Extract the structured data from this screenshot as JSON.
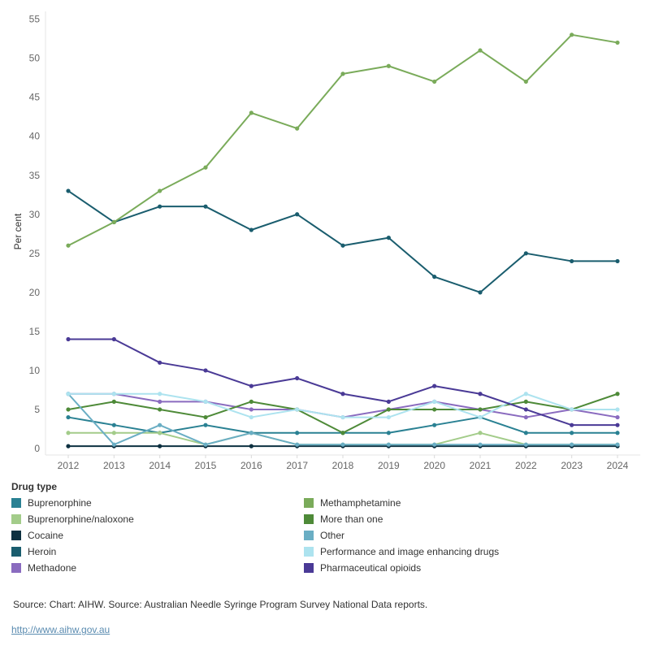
{
  "chart_data": {
    "type": "line",
    "title": "",
    "xlabel": "",
    "ylabel": "Per cent",
    "x": [
      "2012",
      "2013",
      "2014",
      "2015",
      "2016",
      "2017",
      "2018",
      "2019",
      "2020",
      "2021",
      "2022",
      "2023",
      "2024"
    ],
    "ylim": [
      0,
      56
    ],
    "yticks": [
      0,
      5,
      10,
      15,
      20,
      25,
      30,
      35,
      40,
      45,
      50,
      55
    ],
    "grid": false,
    "legend_title": "Drug type",
    "legend_placement": "bottom",
    "series": [
      {
        "name": "Buprenorphine",
        "color": "#2a8193",
        "values": [
          4,
          3,
          2,
          3,
          2,
          2,
          2,
          2,
          3,
          4,
          2,
          2,
          2
        ]
      },
      {
        "name": "Buprenorphine/naloxone",
        "color": "#a3cc8a",
        "values": [
          2,
          2,
          2,
          0.5,
          2,
          0.5,
          0.5,
          0.5,
          0.5,
          2,
          0.5,
          0.5,
          0.5
        ]
      },
      {
        "name": "Cocaine",
        "color": "#0d3040",
        "values": [
          0.3,
          0.3,
          0.3,
          0.3,
          0.3,
          0.3,
          0.3,
          0.3,
          0.3,
          0.3,
          0.3,
          0.3,
          0.3
        ]
      },
      {
        "name": "Heroin",
        "color": "#1a5d6e",
        "values": [
          33,
          29,
          31,
          31,
          28,
          30,
          26,
          27,
          22,
          20,
          25,
          24,
          24
        ]
      },
      {
        "name": "Methadone",
        "color": "#8a6bbf",
        "values": [
          7,
          7,
          6,
          6,
          5,
          5,
          4,
          5,
          6,
          5,
          4,
          5,
          4
        ]
      },
      {
        "name": "Methamphetamine",
        "color": "#7aab5a",
        "values": [
          26,
          29,
          33,
          36,
          43,
          41,
          48,
          49,
          47,
          51,
          47,
          53,
          52
        ]
      },
      {
        "name": "More than one",
        "color": "#4e8a38",
        "values": [
          5,
          6,
          5,
          4,
          6,
          5,
          2,
          5,
          5,
          5,
          6,
          5,
          7
        ]
      },
      {
        "name": "Other",
        "color": "#6aaec4",
        "values": [
          7,
          0.5,
          3,
          0.5,
          2,
          0.5,
          0.5,
          0.5,
          0.5,
          0.5,
          0.5,
          0.5,
          0.5
        ]
      },
      {
        "name": "Performance and image enhancing drugs",
        "color": "#ade3ef",
        "values": [
          7,
          7,
          7,
          6,
          4,
          5,
          4,
          4,
          6,
          4,
          7,
          5,
          5
        ]
      },
      {
        "name": "Pharmaceutical opioids",
        "color": "#4a3a96",
        "values": [
          14,
          14,
          11,
          10,
          8,
          9,
          7,
          6,
          8,
          7,
          5,
          3,
          3
        ]
      }
    ]
  },
  "footer": {
    "source": "Source: Chart: AIHW. Source: Australian Needle Syringe Program Survey National Data reports.",
    "link": "http://www.aihw.gov.au"
  }
}
